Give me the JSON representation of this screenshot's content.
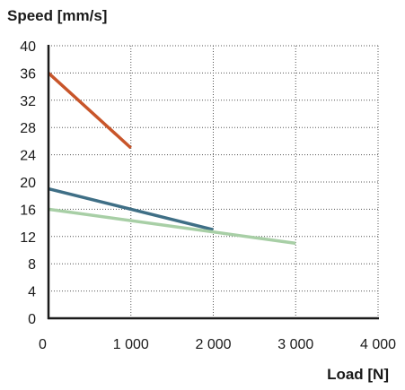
{
  "chart_data": {
    "type": "line",
    "ylabel": "Speed [mm/s]",
    "xlabel": "Load [N]",
    "xlim": [
      0,
      4000
    ],
    "ylim": [
      0,
      40
    ],
    "x_ticks": [
      0,
      1000,
      2000,
      3000,
      4000
    ],
    "x_tick_labels": [
      "0",
      "1 000",
      "2 000",
      "3 000",
      "4 000"
    ],
    "y_ticks": [
      0,
      4,
      8,
      12,
      16,
      20,
      24,
      28,
      32,
      36,
      40
    ],
    "y_tick_labels": [
      "0",
      "4",
      "8",
      "12",
      "16",
      "20",
      "24",
      "28",
      "32",
      "36",
      "40"
    ],
    "grid": true,
    "series": [
      {
        "color": "#c8552a",
        "x": [
          0,
          1000
        ],
        "y": [
          36,
          25
        ]
      },
      {
        "color": "#3f6f86",
        "x": [
          0,
          2000
        ],
        "y": [
          19,
          13
        ]
      },
      {
        "color": "#a8cfa6",
        "x": [
          0,
          3000
        ],
        "y": [
          16,
          11
        ]
      }
    ]
  }
}
